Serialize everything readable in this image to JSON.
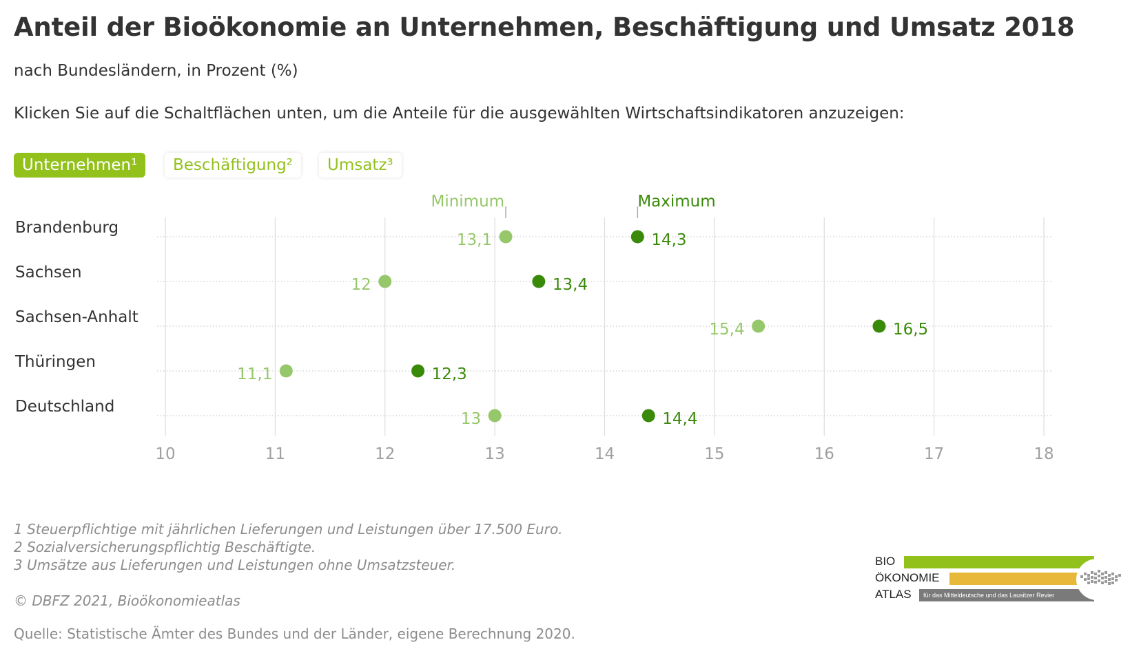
{
  "title": "Anteil der Bioökonomie an Unternehmen, Beschäftigung und Umsatz 2018",
  "subtitle": "nach Bundesländern, in Prozent (%)",
  "intro": "Klicken Sie auf die Schaltflächen unten, um die Anteile für die ausgewählten Wirtschaftsindikatoren anzuzeigen:",
  "buttons": [
    {
      "label": "Unternehmen¹",
      "active": true
    },
    {
      "label": "Beschäftigung²",
      "active": false
    },
    {
      "label": "Umsatz³",
      "active": false
    }
  ],
  "colors": {
    "accent": "#93c11c",
    "min_point": "#96c76a",
    "max_point": "#3a8a0a",
    "bar_light": "#c9e3a9",
    "bar_dark": "#8db870",
    "axis_text": "#a0a0a0",
    "grid": "#dddddd"
  },
  "chart_data": {
    "type": "dumbbell",
    "legend": {
      "min_label": "Minimum",
      "max_label": "Maximum",
      "placement": "top"
    },
    "categories": [
      "Brandenburg",
      "Sachsen",
      "Sachsen-Anhalt",
      "Thüringen",
      "Deutschland"
    ],
    "series": [
      {
        "name": "Minimum",
        "values": [
          13.1,
          12.0,
          15.4,
          11.1,
          13.0
        ],
        "labels": [
          "13,1",
          "12",
          "15,4",
          "11,1",
          "13"
        ]
      },
      {
        "name": "Maximum",
        "values": [
          14.3,
          13.4,
          16.5,
          12.3,
          14.4
        ],
        "labels": [
          "14,3",
          "13,4",
          "16,5",
          "12,3",
          "14,4"
        ]
      }
    ],
    "xlim": [
      10,
      18
    ],
    "xticks": [
      10,
      11,
      12,
      13,
      14,
      15,
      16,
      17,
      18
    ],
    "xtick_labels": [
      "10",
      "11",
      "12",
      "13",
      "14",
      "15",
      "16",
      "17",
      "18"
    ],
    "grid": true
  },
  "footnotes": [
    "1 Steuerpflichtige mit jährlichen Lieferungen und Leistungen über 17.500 Euro.",
    "2 Sozialversicherungspflichtig Beschäftigte.",
    "3 Umsätze aus Lieferungen und Leistungen ohne Umsatzsteuer."
  ],
  "copyright": "© DBFZ 2021, Bioökonomieatlas",
  "source": "Quelle: Statistische Ämter des Bundes und der Länder, eigene Berechnung 2020.",
  "logo": {
    "line1": "BIO",
    "line2": "ÖKONOMIE",
    "line3": "ATLAS",
    "tagline": "für das Mitteldeutsche und das Lausitzer Revier",
    "colors": [
      "#93c11c",
      "#e8b83a",
      "#7a7a7a"
    ]
  }
}
